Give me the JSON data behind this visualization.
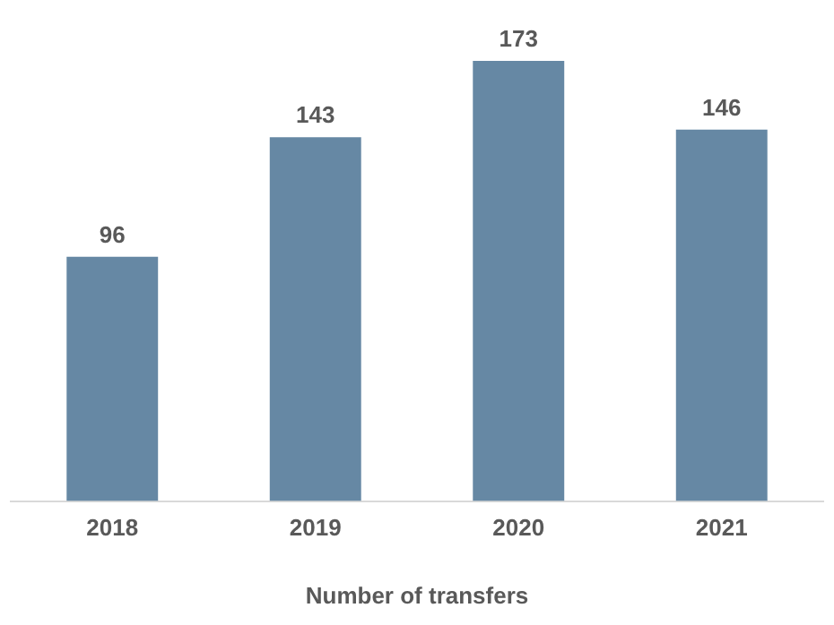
{
  "chart_data": {
    "type": "bar",
    "xlabel": "Number of transfers",
    "categories": [
      "2018",
      "2019",
      "2020",
      "2021"
    ],
    "values": [
      96,
      143,
      173,
      146
    ],
    "color": "#6688a4",
    "data_labels": true,
    "grid": false,
    "legend": false
  }
}
